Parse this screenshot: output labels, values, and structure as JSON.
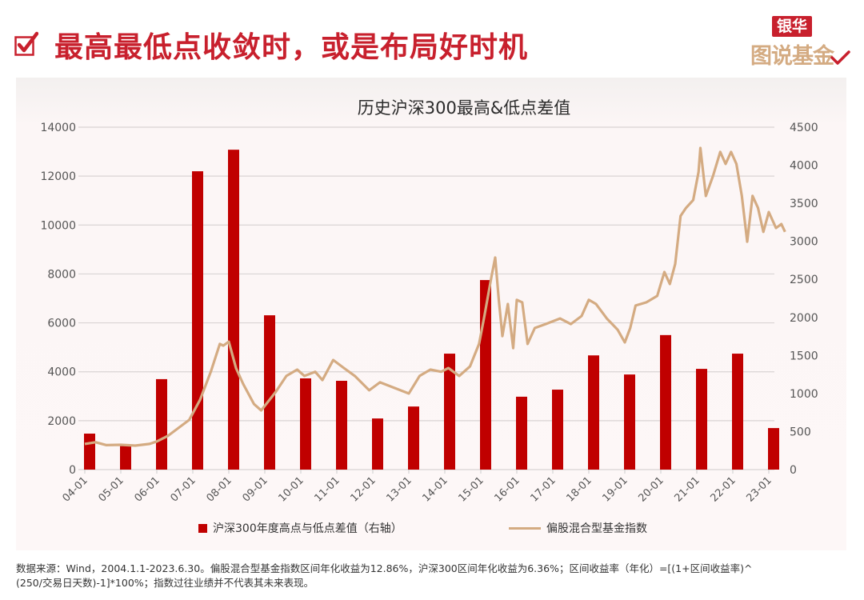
{
  "header": {
    "title": "最高最低点收敛时，或是布局好时机",
    "brand_top": "银华",
    "brand_bottom": "图说基金",
    "accent_color": "#c8202d"
  },
  "chart": {
    "title": "历史沪深300最高&低点差值",
    "left_axis_ticks": [
      "0",
      "2000",
      "4000",
      "6000",
      "8000",
      "10000",
      "12000",
      "14000"
    ],
    "right_axis_ticks": [
      "0",
      "500",
      "1000",
      "1500",
      "2000",
      "2500",
      "3000",
      "3500",
      "4000",
      "4500"
    ],
    "x_ticks": [
      "04-01",
      "05-01",
      "06-01",
      "07-01",
      "08-01",
      "09-01",
      "10-01",
      "11-01",
      "12-01",
      "13-01",
      "14-01",
      "15-01",
      "16-01",
      "17-01",
      "18-01",
      "19-01",
      "20-01",
      "21-01",
      "22-01",
      "23-01"
    ],
    "legend": {
      "bar_label": "沪深300年度高点与低点差值（右轴）",
      "line_label": "偏股混合型基金指数"
    }
  },
  "footnote": {
    "line1": "数据来源：Wind，2004.1.1-2023.6.30。偏股混合型基金指数区间年化收益为12.86%，沪深300区间年化收益为6.36%；区间收益率（年化）=[(1+区间收益率)^",
    "line2": "(250/交易日天数)-1]*100%；指数过往业绩并不代表其未来表现。"
  },
  "chart_data": {
    "type": "bar+line",
    "title": "历史沪深300最高&低点差值",
    "categories": [
      "04-01",
      "05-01",
      "06-01",
      "07-01",
      "08-01",
      "09-01",
      "10-01",
      "11-01",
      "12-01",
      "13-01",
      "14-01",
      "15-01",
      "16-01",
      "17-01",
      "18-01",
      "19-01",
      "20-01",
      "21-01",
      "22-01",
      "23-01"
    ],
    "left_axis": {
      "range": [
        0,
        14000
      ],
      "step": 2000
    },
    "right_axis": {
      "range": [
        0,
        4500
      ],
      "step": 500
    },
    "series": [
      {
        "name": "沪深300年度高点与低点差值（右轴）",
        "type": "bar",
        "axis": "right",
        "color": "#c00000",
        "values": [
          473,
          315,
          1189,
          3921,
          4204,
          2028,
          1199,
          1167,
          672,
          829,
          1524,
          2491,
          958,
          1051,
          1501,
          1250,
          1768,
          1324,
          1524,
          546
        ]
      },
      {
        "name": "偏股混合型基金指数",
        "type": "line",
        "axis": "left",
        "color": "#d4ab82",
        "points": [
          [
            2004.0,
            1050
          ],
          [
            2004.3,
            1120
          ],
          [
            2004.6,
            1000
          ],
          [
            2005.0,
            1015
          ],
          [
            2005.4,
            980
          ],
          [
            2005.8,
            1050
          ],
          [
            2006.0,
            1150
          ],
          [
            2006.3,
            1370
          ],
          [
            2006.6,
            1700
          ],
          [
            2006.9,
            2030
          ],
          [
            2007.2,
            2850
          ],
          [
            2007.5,
            4000
          ],
          [
            2007.75,
            5140
          ],
          [
            2007.85,
            5070
          ],
          [
            2008.0,
            5230
          ],
          [
            2008.2,
            4150
          ],
          [
            2008.4,
            3500
          ],
          [
            2008.7,
            2680
          ],
          [
            2008.9,
            2420
          ],
          [
            2009.3,
            3170
          ],
          [
            2009.6,
            3830
          ],
          [
            2009.9,
            4090
          ],
          [
            2010.1,
            3830
          ],
          [
            2010.4,
            4000
          ],
          [
            2010.6,
            3660
          ],
          [
            2010.9,
            4480
          ],
          [
            2011.2,
            4150
          ],
          [
            2011.5,
            3830
          ],
          [
            2011.9,
            3240
          ],
          [
            2012.2,
            3570
          ],
          [
            2012.6,
            3340
          ],
          [
            2012.9,
            3170
          ],
          [
            2013.0,
            3110
          ],
          [
            2013.3,
            3830
          ],
          [
            2013.6,
            4090
          ],
          [
            2013.9,
            4000
          ],
          [
            2014.1,
            4150
          ],
          [
            2014.4,
            3830
          ],
          [
            2014.7,
            4220
          ],
          [
            2014.95,
            5140
          ],
          [
            2015.1,
            6280
          ],
          [
            2015.3,
            7920
          ],
          [
            2015.4,
            8670
          ],
          [
            2015.5,
            6940
          ],
          [
            2015.6,
            5460
          ],
          [
            2015.75,
            6770
          ],
          [
            2015.9,
            4970
          ],
          [
            2016.0,
            6940
          ],
          [
            2016.15,
            6840
          ],
          [
            2016.3,
            5140
          ],
          [
            2016.5,
            5790
          ],
          [
            2016.8,
            5950
          ],
          [
            2017.2,
            6180
          ],
          [
            2017.5,
            5950
          ],
          [
            2017.8,
            6280
          ],
          [
            2018.0,
            6940
          ],
          [
            2018.2,
            6770
          ],
          [
            2018.5,
            6180
          ],
          [
            2018.8,
            5720
          ],
          [
            2019.0,
            5200
          ],
          [
            2019.15,
            5790
          ],
          [
            2019.3,
            6710
          ],
          [
            2019.6,
            6840
          ],
          [
            2019.9,
            7100
          ],
          [
            2020.1,
            8080
          ],
          [
            2020.25,
            7590
          ],
          [
            2020.4,
            8410
          ],
          [
            2020.55,
            10370
          ],
          [
            2020.7,
            10700
          ],
          [
            2020.9,
            11020
          ],
          [
            2021.05,
            12170
          ],
          [
            2021.1,
            13150
          ],
          [
            2021.25,
            11190
          ],
          [
            2021.45,
            12010
          ],
          [
            2021.65,
            12990
          ],
          [
            2021.8,
            12500
          ],
          [
            2021.95,
            12990
          ],
          [
            2022.1,
            12500
          ],
          [
            2022.25,
            11190
          ],
          [
            2022.4,
            9320
          ],
          [
            2022.55,
            11190
          ],
          [
            2022.7,
            10700
          ],
          [
            2022.85,
            9720
          ],
          [
            2023.0,
            10530
          ],
          [
            2023.2,
            9880
          ],
          [
            2023.35,
            10040
          ],
          [
            2023.45,
            9720
          ]
        ]
      }
    ],
    "xlabel": "",
    "ylabel": "",
    "grid": true,
    "legend_position": "bottom"
  }
}
